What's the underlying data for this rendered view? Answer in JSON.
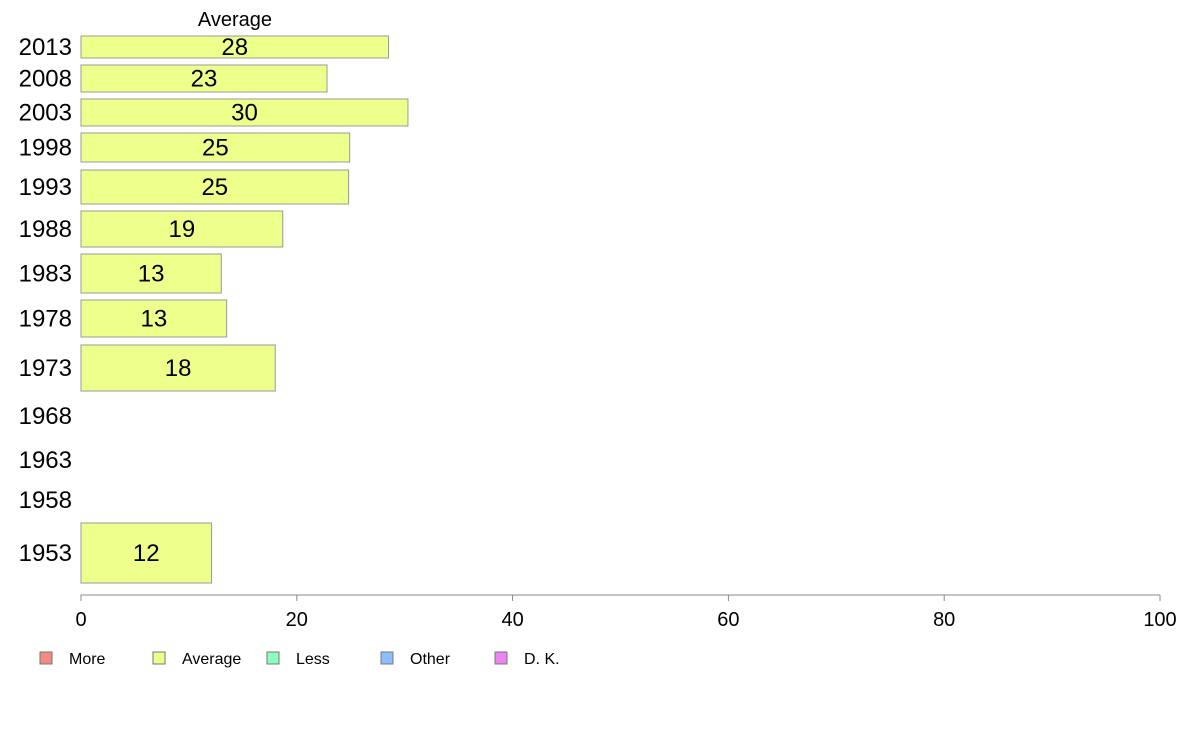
{
  "chart_data": {
    "type": "bar",
    "orientation": "horizontal",
    "column_title": "Average",
    "categories": [
      "2013",
      "2008",
      "2003",
      "1998",
      "1993",
      "1988",
      "1983",
      "1978",
      "1973",
      "1968",
      "1963",
      "1958",
      "1953"
    ],
    "series": [
      {
        "name": "Average",
        "values": [
          28,
          23,
          30,
          25,
          25,
          19,
          13,
          13,
          18,
          null,
          null,
          null,
          12
        ],
        "display_values": [
          28.5,
          22.8,
          30.3,
          24.9,
          24.8,
          18.7,
          13.0,
          13.5,
          18.0,
          null,
          null,
          null,
          12.1
        ]
      }
    ],
    "xlim": [
      0,
      100
    ],
    "xticks": [
      0,
      20,
      40,
      60,
      80,
      100
    ],
    "grid": false,
    "legend": {
      "position": "bottom-left",
      "items": [
        {
          "label": "More",
          "color": "#f28b82"
        },
        {
          "label": "Average",
          "color": "#eeff8c"
        },
        {
          "label": "Less",
          "color": "#8cffc0"
        },
        {
          "label": "Other",
          "color": "#8cbfff"
        },
        {
          "label": "D. K.",
          "color": "#ee82f2"
        }
      ]
    },
    "bar_color": "#eeff8c",
    "bar_stroke": "#999999"
  }
}
